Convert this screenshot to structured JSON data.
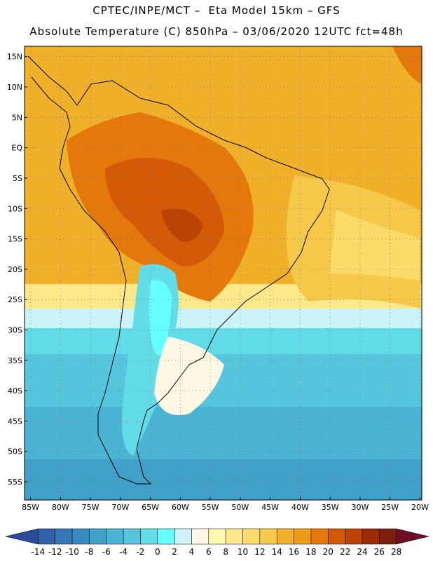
{
  "header": {
    "line1": "CPTEC/INPE/MCT –  Eta Model 15km – GFS",
    "line2": "Absolute Temperature (C) 850hPa – 03/06/2020 12UTC fct=48h"
  },
  "map": {
    "lon_range": [
      -86,
      -19.7
    ],
    "lat_range": [
      -58,
      16.7
    ],
    "lat_labels": [
      "15N",
      "10N",
      "5N",
      "EQ",
      "5S",
      "10S",
      "15S",
      "20S",
      "25S",
      "30S",
      "35S",
      "40S",
      "45S",
      "50S",
      "55S"
    ],
    "lat_values": [
      15,
      10,
      5,
      0,
      -5,
      -10,
      -15,
      -20,
      -25,
      -30,
      -35,
      -40,
      -45,
      -50,
      -55
    ],
    "lon_labels": [
      "85W",
      "80W",
      "75W",
      "70W",
      "65W",
      "60W",
      "55W",
      "50W",
      "45W",
      "40W",
      "35W",
      "30W",
      "25W",
      "20W"
    ],
    "lon_values": [
      -85,
      -80,
      -75,
      -70,
      -65,
      -60,
      -55,
      -50,
      -45,
      -40,
      -35,
      -30,
      -25,
      -20
    ],
    "grid": "dotted"
  },
  "colorbar": {
    "labels": [
      "-14",
      "-12",
      "-10",
      "-8",
      "-6",
      "-4",
      "-2",
      "0",
      "2",
      "4",
      "6",
      "8",
      "10",
      "12",
      "14",
      "16",
      "18",
      "20",
      "22",
      "24",
      "26",
      "28"
    ],
    "colors": [
      "#2a4b9a",
      "#2f62a8",
      "#3478b6",
      "#3a8ac0",
      "#41a0c8",
      "#4bb4d4",
      "#56c6de",
      "#62dde8",
      "#66ffff",
      "#ccf3fa",
      "#fff8e4",
      "#fef9b0",
      "#fde98a",
      "#fbdb6a",
      "#f7c94a",
      "#f1b02a",
      "#ec9d17",
      "#e5780c",
      "#d45a08",
      "#bd4305",
      "#9c2a05",
      "#7c1f0f",
      "#6e0f25"
    ]
  }
}
